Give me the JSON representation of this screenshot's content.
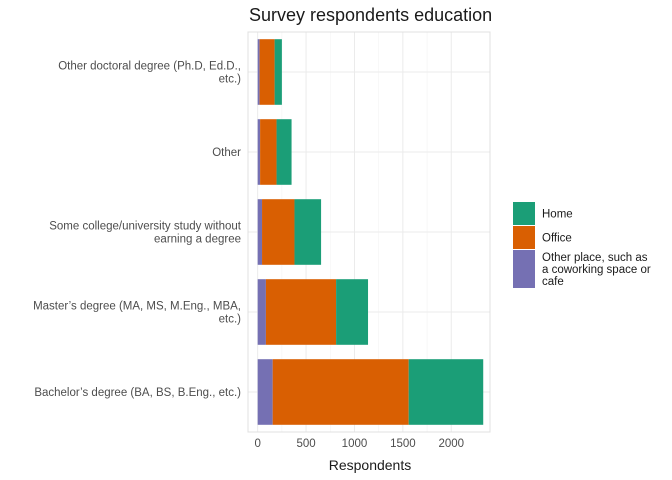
{
  "chart_data": {
    "type": "bar",
    "orientation": "horizontal",
    "stacked": true,
    "title": "Survey respondents education",
    "xlabel": "Respondents",
    "ylabel": "",
    "xlim": [
      -100,
      2400
    ],
    "x_ticks": [
      0,
      500,
      1000,
      1500,
      2000
    ],
    "x_tick_labels": [
      "0",
      "500",
      "1000",
      "1500",
      "2000"
    ],
    "grid": true,
    "legend_position": "right",
    "categories": [
      [
        "Bachelor’s degree (BA, BS, B.Eng., etc.)"
      ],
      [
        "Master’s degree (MA, MS, M.Eng., MBA,",
        "etc.)"
      ],
      [
        "Some college/university study without",
        "earning a degree"
      ],
      [
        "Other"
      ],
      [
        "Other doctoral degree (Ph.D, Ed.D.,",
        "etc.)"
      ]
    ],
    "series": [
      {
        "name": "Other place, such as a coworking space or cafe",
        "legend_lines": [
          "Other place, such as",
          "a coworking space or",
          "cafe"
        ],
        "color": "#7570b3",
        "values": [
          155,
          85,
          45,
          25,
          20
        ]
      },
      {
        "name": "Office",
        "legend_lines": [
          "Office"
        ],
        "color": "#d95f02",
        "values": [
          1405,
          725,
          335,
          170,
          155
        ]
      },
      {
        "name": "Home",
        "legend_lines": [
          "Home"
        ],
        "color": "#1b9e77",
        "values": [
          770,
          330,
          275,
          155,
          75
        ]
      }
    ],
    "legend_order": [
      2,
      1,
      0
    ]
  }
}
